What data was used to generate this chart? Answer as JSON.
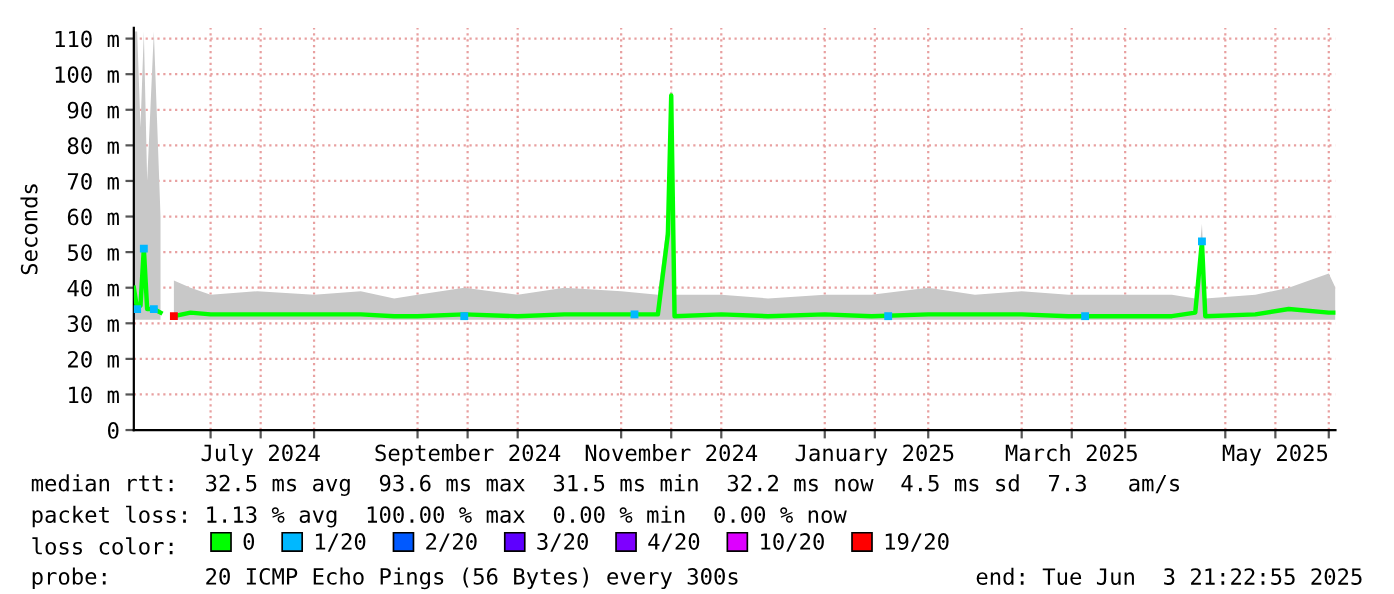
{
  "chart_data": {
    "type": "line",
    "ylabel": "Seconds",
    "xlim": [
      "2024-06-08",
      "2025-06-03"
    ],
    "xticks": [
      {
        "value": "2024-07-01",
        "label": null
      },
      {
        "value": "2024-07-16",
        "label": "July 2024"
      },
      {
        "value": "2024-08-01",
        "label": null
      },
      {
        "value": "2024-09-01",
        "label": null
      },
      {
        "value": "2024-09-16",
        "label": "September 2024"
      },
      {
        "value": "2024-10-01",
        "label": null
      },
      {
        "value": "2024-11-01",
        "label": null
      },
      {
        "value": "2024-11-16",
        "label": "November 2024"
      },
      {
        "value": "2024-12-01",
        "label": null
      },
      {
        "value": "2025-01-01",
        "label": null
      },
      {
        "value": "2025-01-16",
        "label": "January 2025"
      },
      {
        "value": "2025-02-01",
        "label": null
      },
      {
        "value": "2025-03-01",
        "label": null
      },
      {
        "value": "2025-03-16",
        "label": "March 2025"
      },
      {
        "value": "2025-04-01",
        "label": null
      },
      {
        "value": "2025-05-01",
        "label": null
      },
      {
        "value": "2025-05-16",
        "label": "May 2025"
      },
      {
        "value": "2025-06-01",
        "label": null
      }
    ],
    "ylim": [
      0,
      113
    ],
    "yticks": [
      0,
      {
        "value": 10,
        "label": "10 m"
      },
      {
        "value": 20,
        "label": "20 m"
      },
      {
        "value": 30,
        "label": "30 m"
      },
      {
        "value": 40,
        "label": "40 m"
      },
      {
        "value": 50,
        "label": "50 m"
      },
      {
        "value": 60,
        "label": "60 m"
      },
      {
        "value": 70,
        "label": "70 m"
      },
      {
        "value": 80,
        "label": "80 m"
      },
      {
        "value": 90,
        "label": "90 m"
      },
      {
        "value": 100,
        "label": "100 m"
      },
      {
        "value": 110,
        "label": "110 m"
      }
    ],
    "grid": true,
    "legend": "bottom",
    "series": [
      {
        "name": "0",
        "color": "#00ff00",
        "x": [
          "2024-06-08",
          "2024-06-09",
          "2024-06-10",
          "2024-06-11",
          "2024-06-12",
          "2024-06-14",
          "2024-06-16",
          "2024-06-18",
          "2024-06-20",
          "2024-06-25",
          "2024-07-01",
          "2024-07-15",
          "2024-08-01",
          "2024-08-15",
          "2024-08-25",
          "2024-09-01",
          "2024-09-15",
          "2024-10-01",
          "2024-10-15",
          "2024-11-01",
          "2024-11-12",
          "2024-11-15",
          "2024-11-16",
          "2024-11-17",
          "2024-12-01",
          "2024-12-15",
          "2025-01-01",
          "2025-01-15",
          "2025-02-01",
          "2025-02-15",
          "2025-03-01",
          "2025-03-15",
          "2025-04-01",
          "2025-04-15",
          "2025-04-22",
          "2025-04-24",
          "2025-04-25",
          "2025-05-10",
          "2025-05-20",
          "2025-06-01",
          "2025-06-03"
        ],
        "values": [
          40,
          34,
          35,
          51,
          34,
          34,
          33,
          null,
          32,
          33,
          32.5,
          32.5,
          32.5,
          32.5,
          32,
          32,
          32.5,
          32,
          32.5,
          32.5,
          32.5,
          55,
          94,
          32,
          32.5,
          32,
          32.5,
          32,
          32.5,
          32.5,
          32.5,
          32,
          32,
          32,
          33,
          53,
          32,
          32.5,
          34,
          33,
          33
        ],
        "lower": [
          31,
          31,
          31,
          31,
          31,
          31,
          31,
          null,
          31,
          31,
          31,
          31,
          31,
          31,
          31,
          31,
          31,
          31,
          31,
          31,
          31,
          31,
          31,
          31,
          31,
          31,
          31,
          31,
          31,
          31,
          31,
          31,
          31,
          31,
          31,
          31,
          31,
          31,
          31,
          31,
          31
        ],
        "upper": [
          112,
          112,
          85,
          112,
          70,
          112,
          60,
          null,
          42,
          40,
          38,
          39,
          38,
          39,
          37,
          38,
          40,
          38,
          40,
          39,
          38,
          60,
          97,
          38,
          38,
          37,
          38,
          38,
          40,
          38,
          39,
          38,
          38,
          38,
          37,
          58,
          37,
          38,
          40,
          44,
          40
        ]
      },
      {
        "name": "1/20",
        "type": "scatter",
        "color": "#00b8ff",
        "x": [
          "2024-06-09",
          "2024-06-11",
          "2024-06-14",
          "2024-09-15",
          "2024-11-05",
          "2025-01-20",
          "2025-03-20",
          "2025-04-24"
        ],
        "values": [
          34,
          51,
          34,
          32,
          32.5,
          32,
          32,
          53
        ]
      },
      {
        "name": "2/20",
        "type": "scatter",
        "color": "#0059ff"
      },
      {
        "name": "3/20",
        "type": "scatter",
        "color": "#5e00ff"
      },
      {
        "name": "4/20",
        "type": "scatter",
        "color": "#7e00ff"
      },
      {
        "name": "10/20",
        "type": "scatter",
        "color": "#dd00ff"
      },
      {
        "name": "19/20",
        "type": "scatter",
        "color": "#ff0000",
        "x": [
          "2024-06-20"
        ],
        "values": [
          32
        ]
      }
    ],
    "annotations": [
      "median rtt:  32.5 ms avg  93.6 ms max  31.5 ms min  32.2 ms now  4.5 ms sd  7.3   am/s",
      "packet loss: 1.13 % avg  100.00 % max  0.00 % min  0.00 % now",
      "loss color:",
      "probe:       20 ICMP Echo Pings (56 Bytes) every 300s",
      "end: Tue Jun  3 21:22:55 2025"
    ]
  }
}
